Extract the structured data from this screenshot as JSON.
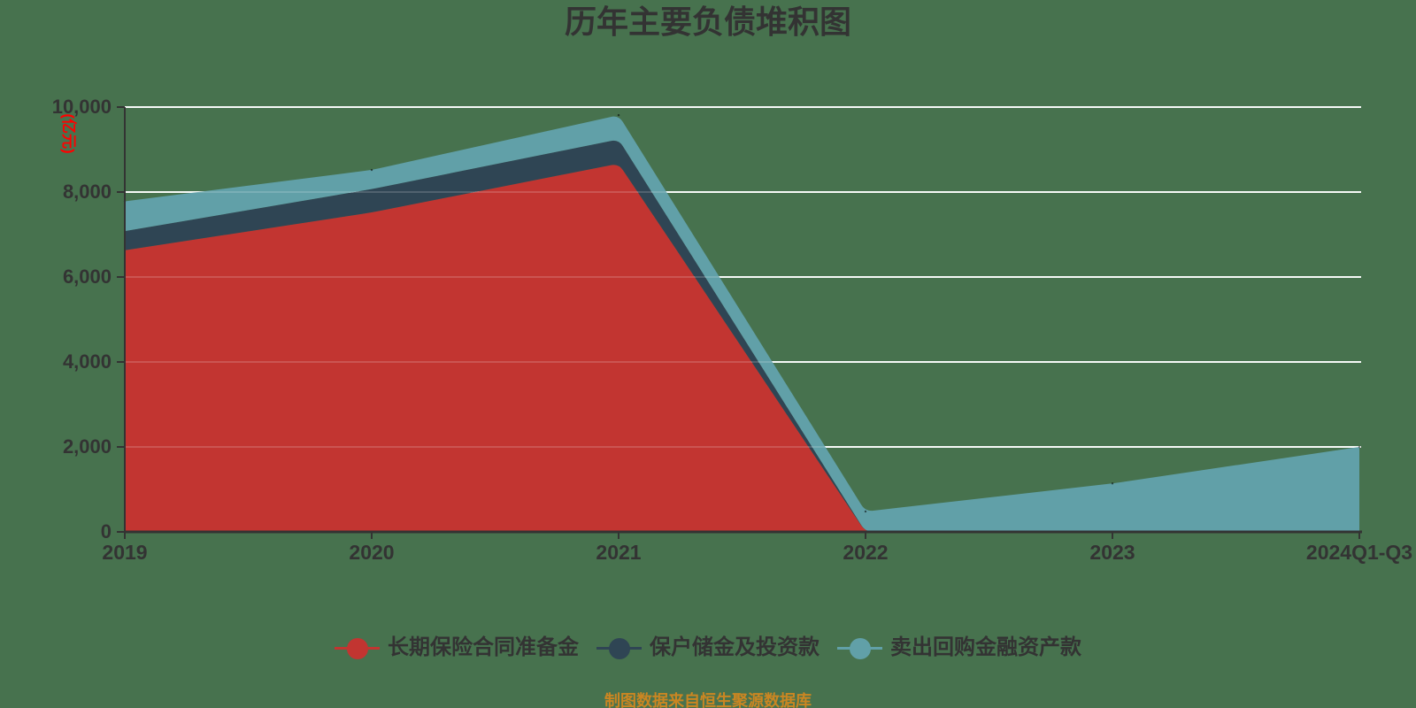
{
  "background_color": "#47724e",
  "text_color": "#333333",
  "title": {
    "text": "历年主要负债堆积图"
  },
  "y_axis": {
    "name": "(亿元)",
    "name_color": "#ff0000",
    "tick_labels": [
      "0",
      "2,000",
      "4,000",
      "6,000",
      "8,000",
      "10,000"
    ],
    "min": 0,
    "max": 10000,
    "interval": 2000
  },
  "x_axis": {
    "tick_labels": [
      "2019",
      "2020",
      "2021",
      "2022",
      "2023",
      "2024Q1-Q3"
    ]
  },
  "legend": {
    "items": [
      {
        "label": "长期保险合同准备金",
        "color": "#c23531"
      },
      {
        "label": "保户储金及投资款",
        "color": "#2f4554"
      },
      {
        "label": "卖出回购金融资产款",
        "color": "#61a0a8"
      }
    ]
  },
  "footer": {
    "text": "制图数据来自恒生聚源数据库",
    "color": "#ca8622"
  },
  "chart_data": {
    "type": "area",
    "stacked": true,
    "smooth": true,
    "title": "历年主要负债堆积图",
    "xlabel": "",
    "ylabel": "(亿元)",
    "ylim": [
      0,
      10000
    ],
    "y_interval": 2000,
    "grid": true,
    "grid_color": "#ffffff",
    "axis_color": "#333333",
    "legend_position": "bottom",
    "categories": [
      "2019",
      "2020",
      "2021",
      "2022",
      "2023",
      "2024Q1-Q3"
    ],
    "series": [
      {
        "name": "长期保险合同准备金",
        "color": "#c23531",
        "values": [
          6630,
          7520,
          8670,
          0,
          0,
          0
        ]
      },
      {
        "name": "保户储金及投资款",
        "color": "#2f4554",
        "values": [
          450,
          550,
          570,
          0,
          0,
          0
        ]
      },
      {
        "name": "卖出回购金融资产款",
        "color": "#61a0a8",
        "values": [
          700,
          450,
          570,
          480,
          1140,
          2000
        ]
      }
    ]
  }
}
